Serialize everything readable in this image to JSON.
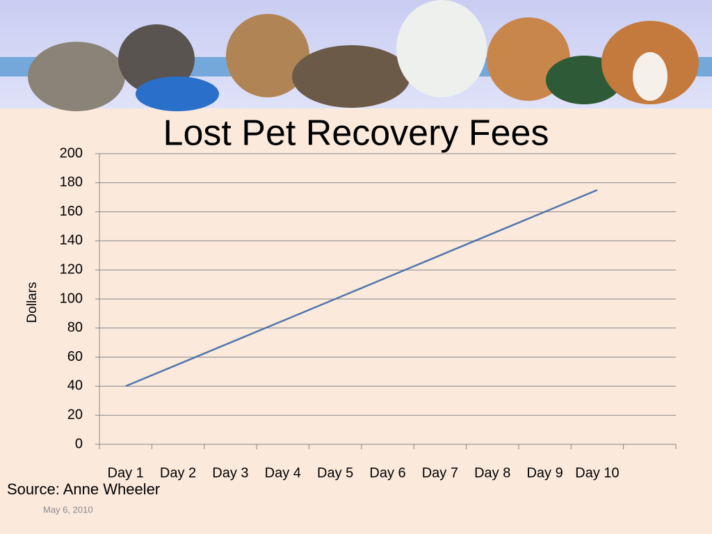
{
  "chart_data": {
    "type": "line",
    "title": "Lost Pet Recovery Fees",
    "y_label": "Dollars",
    "categories": [
      "Day 1",
      "Day 2",
      "Day 3",
      "Day 4",
      "Day 5",
      "Day 6",
      "Day 7",
      "Day 8",
      "Day 9",
      "Day 10",
      null
    ],
    "values": [
      40,
      55,
      70,
      85,
      100,
      115,
      130,
      145,
      160,
      175,
      null
    ],
    "color": "#4f75ad",
    "ylim": [
      0,
      200
    ],
    "yticks": [
      0,
      20,
      40,
      60,
      80,
      100,
      120,
      140,
      160,
      180,
      200
    ],
    "grid": true
  },
  "footer": {
    "source": "Source: Anne Wheeler",
    "date": "May 6, 2010"
  }
}
